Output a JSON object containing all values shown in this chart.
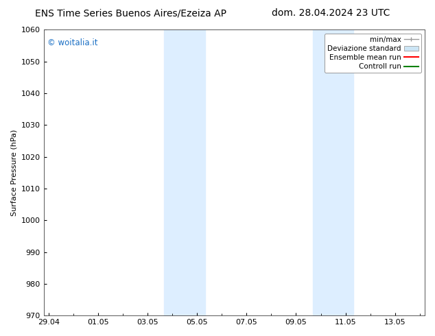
{
  "title_left": "ENS Time Series Buenos Aires/Ezeiza AP",
  "title_right": "dom. 28.04.2024 23 UTC",
  "ylabel": "Surface Pressure (hPa)",
  "ylim": [
    970,
    1060
  ],
  "yticks": [
    970,
    980,
    990,
    1000,
    1010,
    1020,
    1030,
    1040,
    1050,
    1060
  ],
  "xtick_positions": [
    0,
    2,
    4,
    6,
    8,
    10,
    12,
    14
  ],
  "xtick_labels": [
    "29.04",
    "01.05",
    "03.05",
    "05.05",
    "07.05",
    "09.05",
    "11.05",
    "13.05"
  ],
  "xlim": [
    -0.2,
    15.2
  ],
  "watermark": "© woitalia.it",
  "watermark_color": "#1a6fc4",
  "bg_color": "#ffffff",
  "plot_bg_color": "#ffffff",
  "shaded_bands": [
    {
      "x_start": 4.67,
      "x_end": 6.33,
      "color": "#ddeeff"
    },
    {
      "x_start": 10.67,
      "x_end": 12.33,
      "color": "#ddeeff"
    }
  ],
  "legend_items": [
    {
      "label": "min/max",
      "color": "#aaaaaa",
      "style": "errorbar"
    },
    {
      "label": "Deviazione standard",
      "color": "#ccddef",
      "style": "bar"
    },
    {
      "label": "Ensemble mean run",
      "color": "#ff0000",
      "style": "line"
    },
    {
      "label": "Controll run",
      "color": "#008000",
      "style": "line"
    }
  ],
  "title_fontsize": 10,
  "axis_fontsize": 8,
  "tick_fontsize": 8,
  "legend_fontsize": 7.5
}
